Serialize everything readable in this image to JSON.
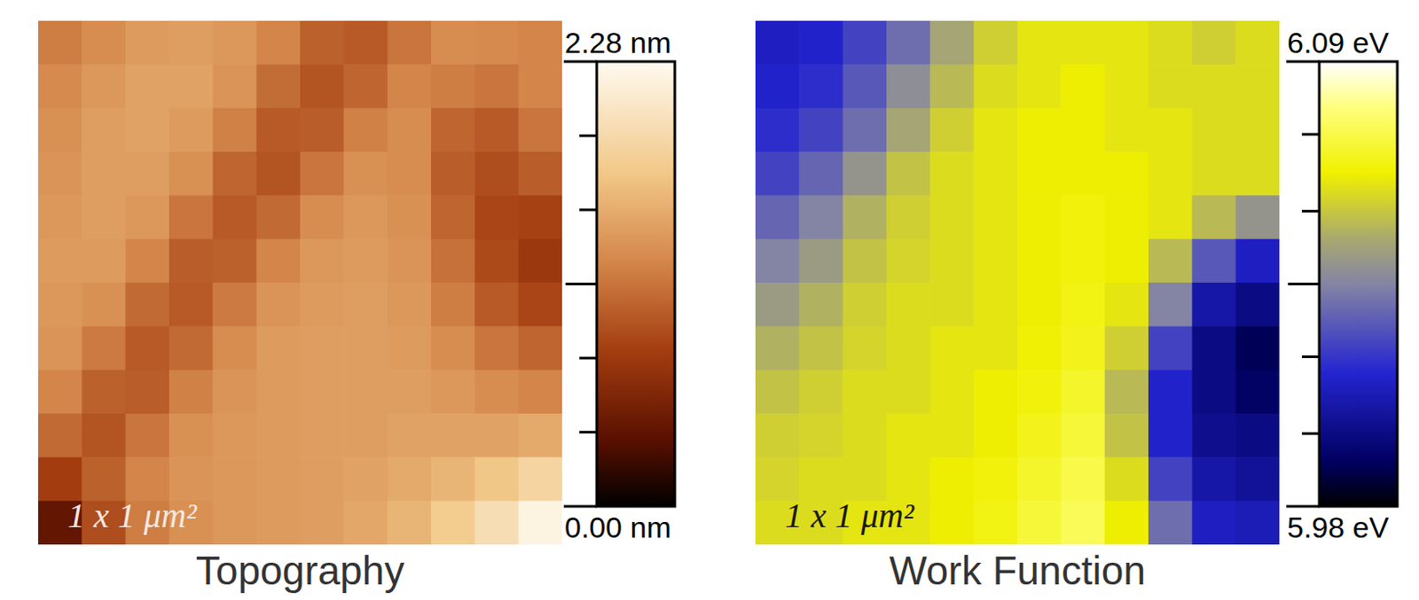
{
  "chart_data": [
    {
      "type": "heatmap",
      "title": "Topography",
      "annotation": "1 x 1 μm²",
      "tick_labels": false,
      "cells": [
        [
          1.2,
          1.3,
          1.4,
          1.42,
          1.38,
          1.25,
          1.02,
          0.98,
          1.15,
          1.3,
          1.28,
          1.25
        ],
        [
          1.28,
          1.38,
          1.45,
          1.45,
          1.35,
          1.1,
          0.95,
          1.05,
          1.25,
          1.2,
          1.15,
          1.25
        ],
        [
          1.32,
          1.42,
          1.45,
          1.4,
          1.22,
          0.98,
          1.0,
          1.22,
          1.3,
          1.05,
          0.98,
          1.15
        ],
        [
          1.35,
          1.42,
          1.42,
          1.32,
          1.05,
          0.95,
          1.15,
          1.32,
          1.3,
          1.0,
          0.9,
          1.0
        ],
        [
          1.38,
          1.42,
          1.38,
          1.15,
          0.98,
          1.08,
          1.3,
          1.38,
          1.32,
          1.05,
          0.85,
          0.82
        ],
        [
          1.4,
          1.4,
          1.25,
          1.0,
          1.02,
          1.25,
          1.38,
          1.4,
          1.35,
          1.12,
          0.88,
          0.75
        ],
        [
          1.38,
          1.32,
          1.08,
          0.98,
          1.18,
          1.35,
          1.4,
          1.42,
          1.38,
          1.2,
          0.98,
          0.85
        ],
        [
          1.35,
          1.18,
          0.98,
          1.08,
          1.3,
          1.4,
          1.42,
          1.42,
          1.4,
          1.3,
          1.15,
          1.05
        ],
        [
          1.25,
          1.02,
          1.0,
          1.22,
          1.35,
          1.4,
          1.42,
          1.42,
          1.42,
          1.38,
          1.3,
          1.25
        ],
        [
          1.08,
          0.95,
          1.15,
          1.32,
          1.38,
          1.4,
          1.42,
          1.42,
          1.45,
          1.45,
          1.45,
          1.5
        ],
        [
          0.8,
          1.02,
          1.25,
          1.35,
          1.38,
          1.4,
          1.42,
          1.45,
          1.5,
          1.58,
          1.7,
          1.85
        ],
        [
          0.4,
          0.9,
          1.2,
          1.32,
          1.38,
          1.4,
          1.42,
          1.48,
          1.58,
          1.75,
          1.95,
          2.2
        ]
      ],
      "colorbar_range": [
        0,
        2.28
      ],
      "colorbar_ticks": [
        {
          "value": 0,
          "label": "0.00 nm"
        },
        {
          "value": 2.28,
          "label": "2.28 nm"
        }
      ],
      "colorbar_minor_ticks": [
        0.38,
        0.76,
        1.14,
        1.52,
        1.9
      ]
    },
    {
      "type": "heatmap",
      "title": "Work Function",
      "annotation": "1 x 1 μm²",
      "tick_labels": false,
      "cells": [
        [
          6.01,
          6.012,
          6.02,
          6.03,
          6.045,
          6.055,
          6.06,
          6.06,
          6.06,
          6.058,
          6.055,
          6.058
        ],
        [
          6.012,
          6.015,
          6.025,
          6.038,
          6.05,
          6.058,
          6.06,
          6.062,
          6.06,
          6.058,
          6.058,
          6.058
        ],
        [
          6.015,
          6.02,
          6.03,
          6.045,
          6.055,
          6.06,
          6.062,
          6.062,
          6.06,
          6.06,
          6.058,
          6.058
        ],
        [
          6.02,
          6.028,
          6.04,
          6.052,
          6.058,
          6.06,
          6.062,
          6.062,
          6.062,
          6.06,
          6.058,
          6.058
        ],
        [
          6.028,
          6.035,
          6.048,
          6.055,
          6.058,
          6.06,
          6.062,
          6.064,
          6.062,
          6.06,
          6.05,
          6.04
        ],
        [
          6.035,
          6.042,
          6.052,
          6.056,
          6.058,
          6.06,
          6.062,
          6.064,
          6.062,
          6.05,
          6.025,
          6.01
        ],
        [
          6.042,
          6.048,
          6.055,
          6.058,
          6.058,
          6.06,
          6.062,
          6.065,
          6.06,
          6.035,
          6.005,
          5.998
        ],
        [
          6.048,
          6.052,
          6.056,
          6.058,
          6.06,
          6.06,
          6.063,
          6.066,
          6.055,
          6.02,
          5.998,
          5.99
        ],
        [
          6.052,
          6.055,
          6.058,
          6.058,
          6.06,
          6.062,
          6.064,
          6.068,
          6.05,
          6.012,
          5.998,
          5.992
        ],
        [
          6.055,
          6.056,
          6.058,
          6.06,
          6.06,
          6.062,
          6.066,
          6.07,
          6.052,
          6.012,
          6.0,
          5.998
        ],
        [
          6.056,
          6.058,
          6.058,
          6.06,
          6.062,
          6.064,
          6.068,
          6.072,
          6.058,
          6.02,
          6.005,
          6.002
        ],
        [
          6.058,
          6.058,
          6.06,
          6.06,
          6.062,
          6.065,
          6.07,
          6.074,
          6.062,
          6.03,
          6.01,
          6.008
        ]
      ],
      "colorbar_range": [
        5.98,
        6.09
      ],
      "colorbar_ticks": [
        {
          "value": 5.98,
          "label": "5.98 eV"
        },
        {
          "value": 6.09,
          "label": "6.09 eV"
        }
      ],
      "colorbar_minor_ticks": [
        5.998,
        6.017,
        6.035,
        6.053,
        6.072
      ]
    }
  ]
}
